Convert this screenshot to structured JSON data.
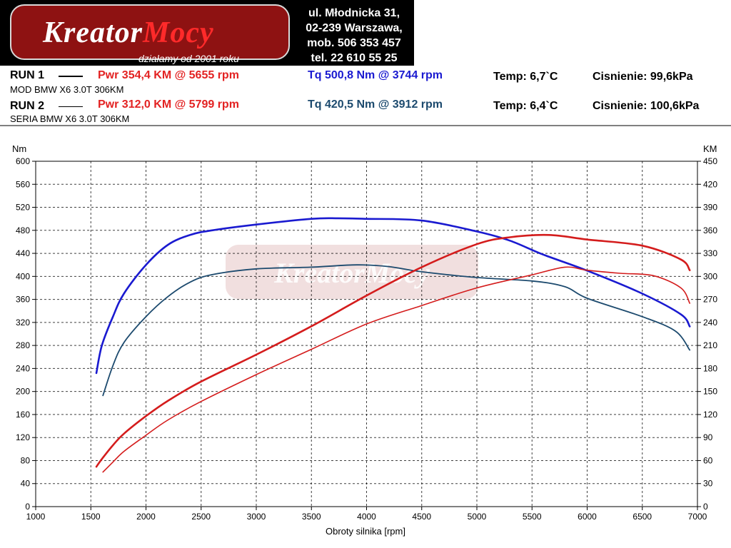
{
  "header": {
    "address": [
      "ul. Młodnicka 31,",
      "02-239  Warszawa,",
      "mob.  506 353 457",
      "tel.  22 610 55 25"
    ],
    "logo_text_a": "Kreator",
    "logo_text_b": "Mocy",
    "logo_tagline": "działamy od 2001 roku"
  },
  "runs": [
    {
      "label": "RUN 1",
      "desc": "MOD BMW X6 3.0T 306KM",
      "pwr": "Pwr  354,4 KM @ 5655 rpm",
      "tq": "Tq 500,8 Nm @ 3744 rpm",
      "temp": "Temp: 6,7`C",
      "pressure": "Cisnienie: 99,6kPa"
    },
    {
      "label": "RUN 2",
      "desc": "SERIA BMW X6 3.0T 306KM",
      "pwr": "Pwr  312,0 KM @ 5799 rpm",
      "tq": "Tq 420,5 Nm @ 3912 rpm",
      "temp": "Temp: 6,4`C",
      "pressure": "Cisnienie: 100,6kPa"
    }
  ],
  "colors": {
    "run1_torque": "#1a1ad0",
    "run2_torque": "#1c4a6e",
    "run1_power": "#d41c1c",
    "run2_power": "#d41c1c",
    "grid": "#000000"
  },
  "chart_data": {
    "type": "line",
    "xlabel": "Obroty silnika [rpm]",
    "ylabel_left": "Nm",
    "ylabel_right": "KM",
    "xlim": [
      1000,
      7000
    ],
    "ylim_left": [
      0,
      600
    ],
    "ylim_right": [
      0,
      450
    ],
    "x_ticks": [
      1000,
      1500,
      2000,
      2500,
      3000,
      3500,
      4000,
      4500,
      5000,
      5500,
      6000,
      6500,
      7000
    ],
    "y_ticks_left": [
      0,
      40,
      80,
      120,
      160,
      200,
      240,
      280,
      320,
      360,
      400,
      440,
      480,
      520,
      560,
      600
    ],
    "y_ticks_right": [
      0,
      30,
      60,
      90,
      120,
      150,
      180,
      210,
      240,
      270,
      300,
      330,
      360,
      390,
      420,
      450
    ],
    "grid": true,
    "series": [
      {
        "axis": "left",
        "x": [
          1550,
          1600,
          1700,
          1800,
          2000,
          2200,
          2400,
          2600,
          3000,
          3500,
          3744,
          4000,
          4500,
          5000,
          5300,
          5600,
          6000,
          6500,
          6850,
          6930
        ],
        "values": [
          232,
          280,
          330,
          370,
          420,
          455,
          472,
          480,
          490,
          500,
          501,
          500,
          497,
          478,
          462,
          438,
          410,
          370,
          334,
          313
        ]
      },
      {
        "axis": "left",
        "x": [
          1610,
          1700,
          1800,
          2000,
          2200,
          2400,
          2600,
          3000,
          3500,
          3912,
          4200,
          4500,
          5000,
          5500,
          5800,
          6000,
          6500,
          6800,
          6930
        ],
        "values": [
          193,
          245,
          285,
          330,
          365,
          390,
          403,
          413,
          416,
          420,
          417,
          408,
          398,
          392,
          382,
          362,
          330,
          305,
          272
        ]
      },
      {
        "axis": "right",
        "x": [
          1550,
          1600,
          1700,
          1800,
          2000,
          2200,
          2500,
          3000,
          3500,
          4000,
          4500,
          5000,
          5300,
          5655,
          6000,
          6500,
          6850,
          6930
        ],
        "values": [
          52,
          62,
          80,
          95,
          118,
          138,
          163,
          198,
          235,
          275,
          312,
          342,
          351,
          354,
          348,
          340,
          322,
          308
        ]
      },
      {
        "axis": "right",
        "x": [
          1610,
          1700,
          1800,
          2000,
          2200,
          2500,
          3000,
          3500,
          4000,
          4500,
          5000,
          5500,
          5799,
          6000,
          6300,
          6600,
          6850,
          6930
        ],
        "values": [
          45,
          58,
          72,
          93,
          113,
          137,
          172,
          205,
          238,
          262,
          285,
          302,
          312,
          308,
          304,
          301,
          285,
          265
        ]
      }
    ]
  }
}
